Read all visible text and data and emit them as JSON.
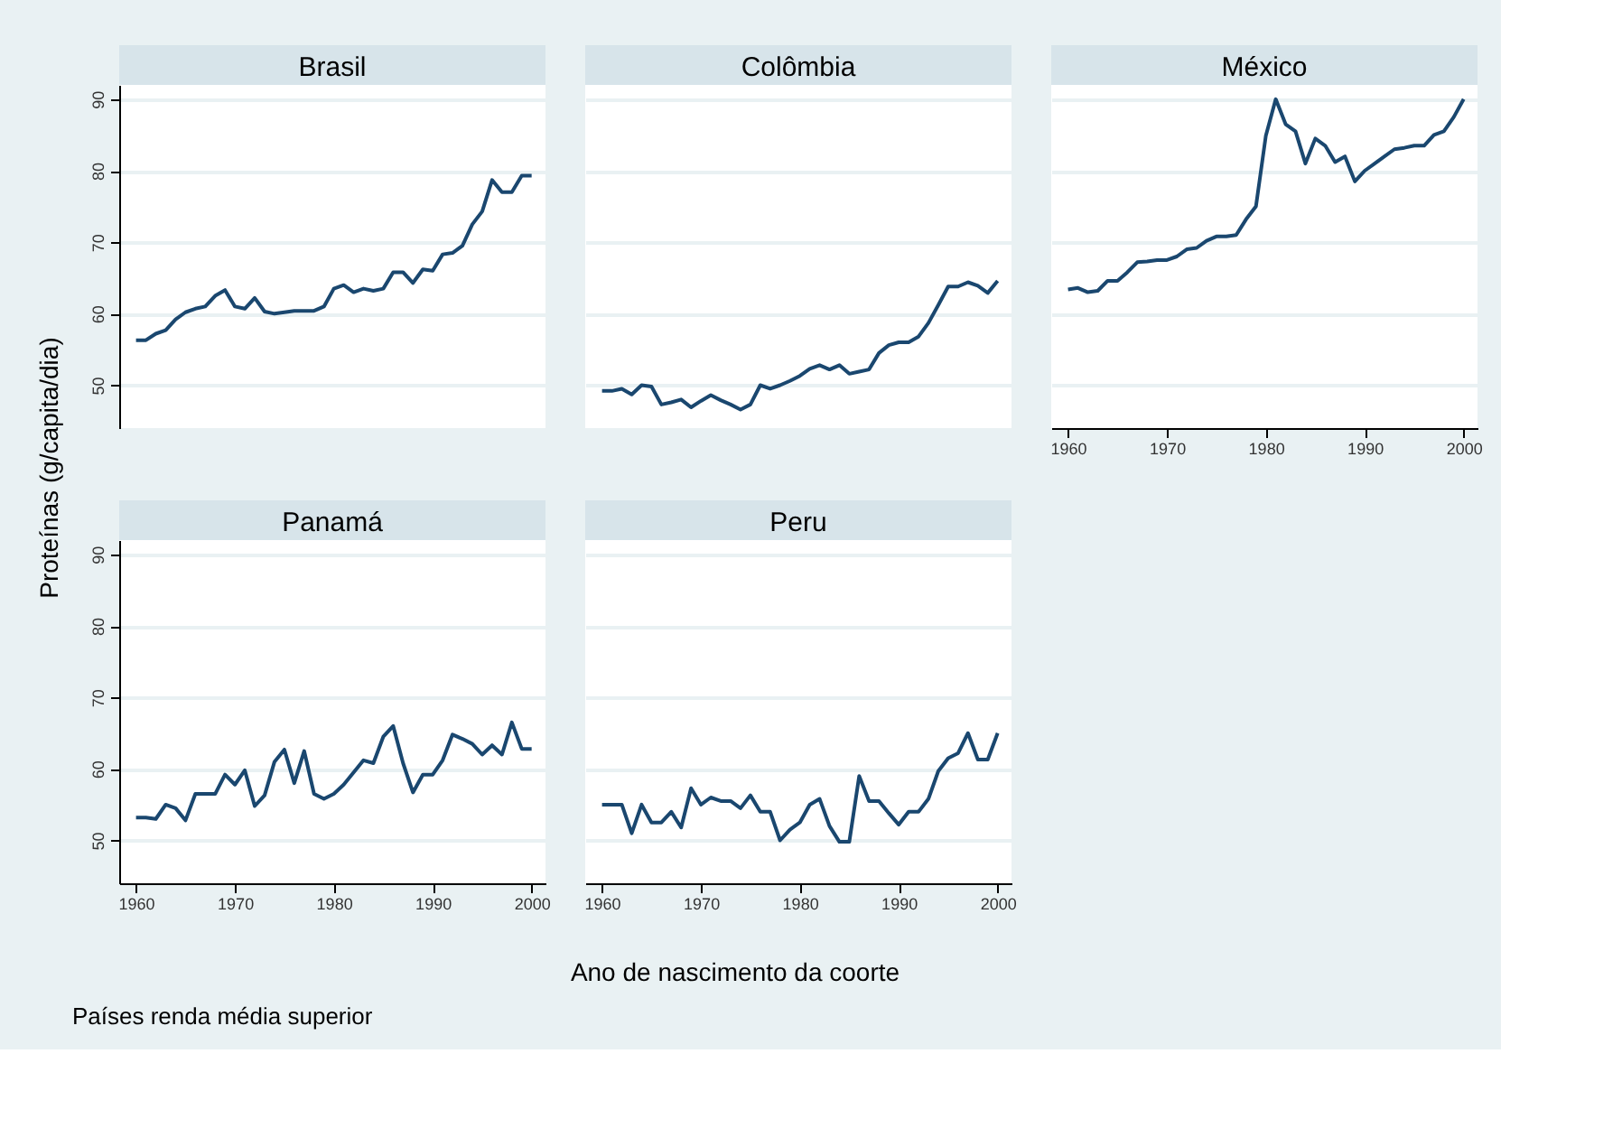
{
  "chart_data": [
    {
      "type": "line",
      "title": "Brasil",
      "ylabel": "Proteínas (g/capita/dia)",
      "color": "#1a476f",
      "x": [
        1960,
        1961,
        1962,
        1963,
        1964,
        1965,
        1966,
        1967,
        1968,
        1969,
        1970,
        1971,
        1972,
        1973,
        1974,
        1975,
        1976,
        1977,
        1978,
        1979,
        1980,
        1981,
        1982,
        1983,
        1984,
        1985,
        1986,
        1987,
        1988,
        1989,
        1990,
        1991,
        1992,
        1993,
        1994,
        1995,
        1996,
        1997,
        1998,
        1999,
        2000
      ],
      "values": [
        56.3,
        56.3,
        57.2,
        57.7,
        59.2,
        60.2,
        60.7,
        61,
        62.5,
        63.3,
        61,
        60.7,
        62.2,
        60.3,
        60,
        60.2,
        60.4,
        60.4,
        60.4,
        61,
        63.5,
        64,
        63,
        63.5,
        63.2,
        63.5,
        65.8,
        65.8,
        64.3,
        66.2,
        66,
        68.3,
        68.5,
        69.5,
        72.5,
        74.3,
        78.7,
        77,
        77,
        79.3,
        79.3
      ],
      "xlim": [
        1958.3,
        2001.4
      ],
      "ylim": [
        44,
        92
      ],
      "xticks": [
        1960,
        1970,
        1980,
        1990,
        2000
      ],
      "yticks": [
        50,
        60,
        70,
        80,
        90
      ],
      "grid": "y",
      "tick_labels": "y"
    },
    {
      "type": "line",
      "title": "Colômbia",
      "color": "#1a476f",
      "x": [
        1960,
        1961,
        1962,
        1963,
        1964,
        1965,
        1966,
        1967,
        1968,
        1969,
        1970,
        1971,
        1972,
        1973,
        1974,
        1975,
        1976,
        1977,
        1978,
        1979,
        1980,
        1981,
        1982,
        1983,
        1984,
        1985,
        1986,
        1987,
        1988,
        1989,
        1990,
        1991,
        1992,
        1993,
        1994,
        1995,
        1996,
        1997,
        1998,
        1999,
        2000
      ],
      "values": [
        49.2,
        49.2,
        49.5,
        48.7,
        50,
        49.8,
        47.3,
        47.6,
        48,
        46.9,
        47.8,
        48.6,
        47.9,
        47.3,
        46.6,
        47.3,
        50,
        49.5,
        50,
        50.6,
        51.3,
        52.3,
        52.8,
        52.2,
        52.8,
        51.6,
        51.9,
        52.2,
        54.5,
        55.6,
        56,
        56,
        56.8,
        58.7,
        61.2,
        63.8,
        63.8,
        64.4,
        63.9,
        62.9,
        64.6
      ],
      "xlim": [
        1958.3,
        2001.4
      ],
      "ylim": [
        44,
        92
      ],
      "xticks": [
        1960,
        1970,
        1980,
        1990,
        2000
      ],
      "yticks": [
        50,
        60,
        70,
        80,
        90
      ],
      "grid": "y",
      "tick_labels": false
    },
    {
      "type": "line",
      "title": "México",
      "color": "#1a476f",
      "x": [
        1960,
        1961,
        1962,
        1963,
        1964,
        1965,
        1966,
        1967,
        1968,
        1969,
        1970,
        1971,
        1972,
        1973,
        1974,
        1975,
        1976,
        1977,
        1978,
        1979,
        1980,
        1981,
        1982,
        1983,
        1984,
        1985,
        1986,
        1987,
        1988,
        1989,
        1990,
        1991,
        1992,
        1993,
        1994,
        1995,
        1996,
        1997,
        1998,
        1999,
        2000
      ],
      "values": [
        63.4,
        63.6,
        63,
        63.2,
        64.6,
        64.6,
        65.8,
        67.2,
        67.3,
        67.5,
        67.5,
        68,
        69,
        69.2,
        70.2,
        70.8,
        70.8,
        71,
        73.2,
        75,
        84.9,
        90,
        86.5,
        85.5,
        81,
        84.5,
        83.5,
        81.2,
        82,
        78.5,
        80,
        81,
        82,
        83,
        83.2,
        83.5,
        83.5,
        85,
        85.5,
        87.5,
        90
      ],
      "xlim": [
        1958.3,
        2001.4
      ],
      "ylim": [
        44,
        92
      ],
      "xticks": [
        1960,
        1970,
        1980,
        1990,
        2000
      ],
      "yticks": [
        50,
        60,
        70,
        80,
        90
      ],
      "grid": "y",
      "tick_labels": "x"
    },
    {
      "type": "line",
      "title": "Panamá",
      "annotations": [
        "Países renda média superior"
      ],
      "color": "#1a476f",
      "x": [
        1960,
        1961,
        1962,
        1963,
        1964,
        1965,
        1966,
        1967,
        1968,
        1969,
        1970,
        1971,
        1972,
        1973,
        1974,
        1975,
        1976,
        1977,
        1978,
        1979,
        1980,
        1981,
        1982,
        1983,
        1984,
        1985,
        1986,
        1987,
        1988,
        1989,
        1990,
        1991,
        1992,
        1993,
        1994,
        1995,
        1996,
        1997,
        1998,
        1999,
        2000
      ],
      "values": [
        53.2,
        53.2,
        53,
        55,
        54.5,
        52.8,
        56.5,
        56.5,
        56.5,
        59.2,
        57.8,
        59.8,
        54.8,
        56.3,
        61,
        62.7,
        58,
        62.5,
        56.5,
        55.8,
        56.5,
        57.8,
        59.5,
        61.2,
        60.8,
        64.5,
        66,
        60.8,
        56.7,
        59.2,
        59.2,
        61.2,
        64.8,
        64.2,
        63.5,
        62,
        63.3,
        62,
        66.5,
        62.8,
        62.8
      ],
      "xlim": [
        1958.3,
        2001.4
      ],
      "ylim": [
        44,
        92
      ],
      "xticks": [
        1960,
        1970,
        1980,
        1990,
        2000
      ],
      "yticks": [
        50,
        60,
        70,
        80,
        90
      ],
      "grid": "y"
    },
    {
      "type": "line",
      "title": "Peru",
      "xlabel": "Ano de nascimento da coorte",
      "color": "#1a476f",
      "x": [
        1960,
        1961,
        1962,
        1963,
        1964,
        1965,
        1966,
        1967,
        1968,
        1969,
        1970,
        1971,
        1972,
        1973,
        1974,
        1975,
        1976,
        1977,
        1978,
        1979,
        1980,
        1981,
        1982,
        1983,
        1984,
        1985,
        1986,
        1987,
        1988,
        1989,
        1990,
        1991,
        1992,
        1993,
        1994,
        1995,
        1996,
        1997,
        1998,
        1999,
        2000
      ],
      "values": [
        55,
        55,
        55,
        51,
        55,
        52.5,
        52.5,
        54,
        51.8,
        57.3,
        55,
        56,
        55.5,
        55.5,
        54.5,
        56.3,
        54,
        54,
        50,
        51.5,
        52.5,
        55,
        55.8,
        52,
        49.8,
        49.8,
        59,
        55.5,
        55.5,
        53.8,
        52.2,
        54,
        54,
        55.8,
        59.7,
        61.5,
        62.2,
        65,
        61.3,
        61.3,
        65
      ],
      "xlim": [
        1958.3,
        2001.4
      ],
      "ylim": [
        44,
        92
      ],
      "xticks": [
        1960,
        1970,
        1980,
        1990,
        2000
      ],
      "yticks": [
        50,
        60,
        70,
        80,
        90
      ],
      "grid": "y",
      "tick_labels": "x"
    }
  ]
}
